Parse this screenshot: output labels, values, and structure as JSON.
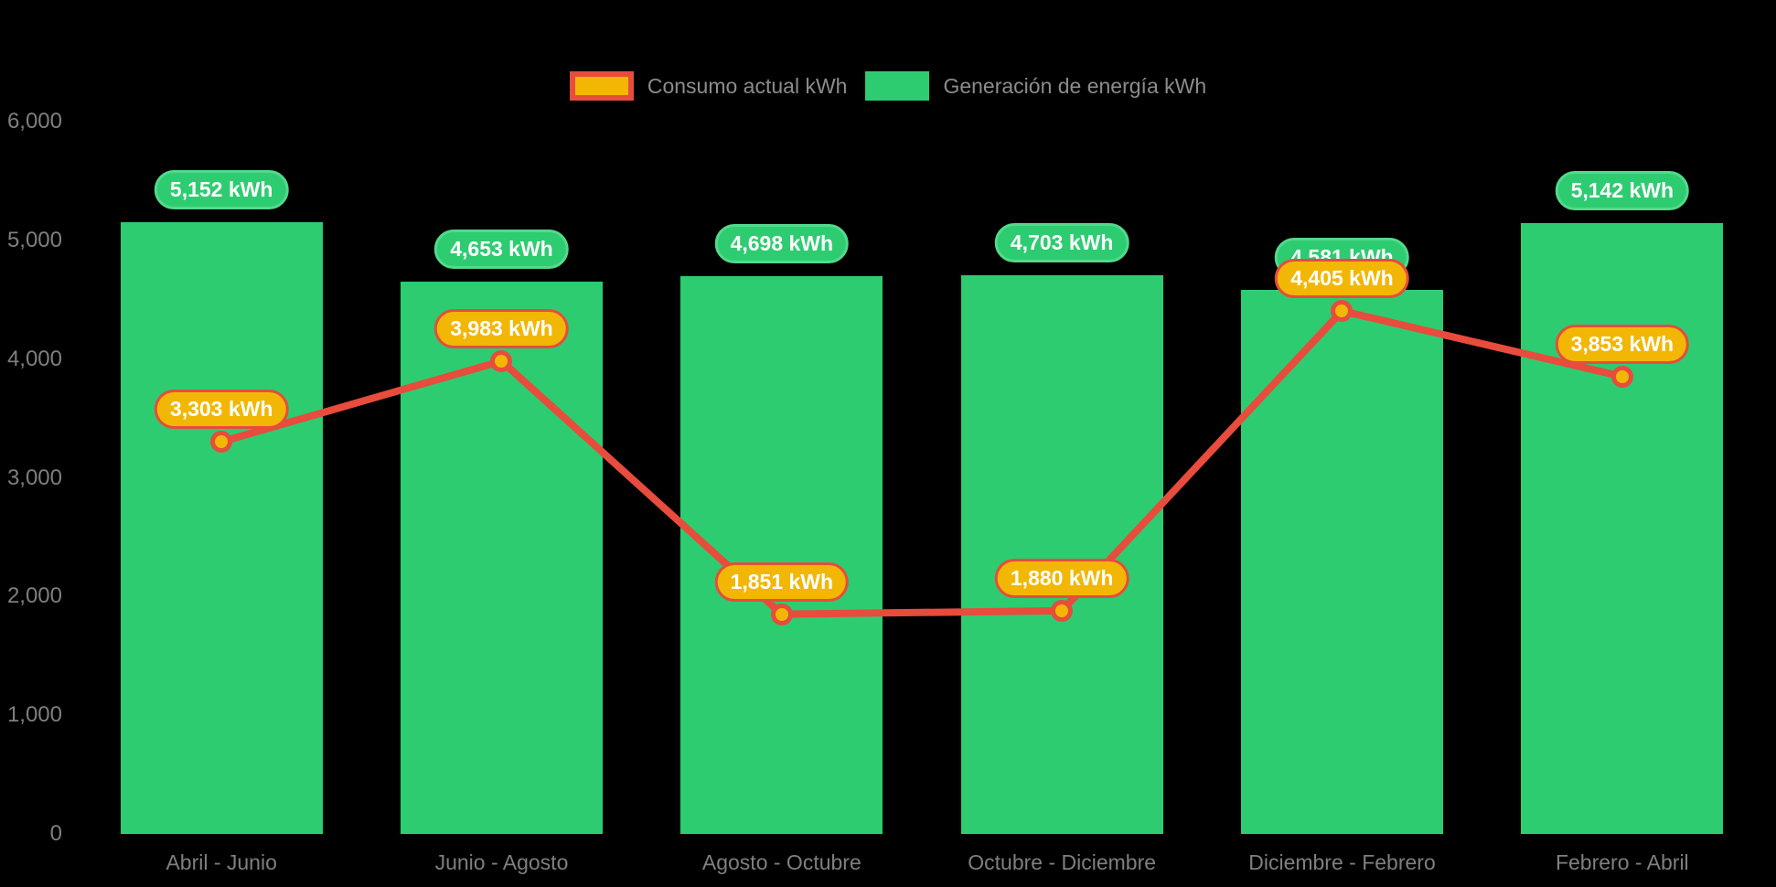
{
  "colors": {
    "background": "#000000",
    "bar": "#2ecc71",
    "bar_badge_fill": "#2ecc71",
    "bar_badge_border": "#53d98b",
    "line": "#e74c3c",
    "line_badge_fill": "#f2b705",
    "line_badge_border": "#e74c3c",
    "marker_fill": "#f2b705",
    "marker_border": "#e74c3c",
    "axis_text": "#7f7f7f",
    "legend_text": "#8c8c8c",
    "badge_text": "#ffffff"
  },
  "legend": {
    "items": [
      {
        "label": "Consumo actual kWh",
        "type": "line"
      },
      {
        "label": "Generación de energía kWh",
        "type": "bar"
      }
    ]
  },
  "chart_data": {
    "type": "bar+line",
    "title": "",
    "xlabel": "",
    "ylabel": "",
    "grid": false,
    "legend_position": "top-center",
    "categories": [
      "Abril - Junio",
      "Junio - Agosto",
      "Agosto - Octubre",
      "Octubre - Diciembre",
      "Diciembre - Febrero",
      "Febrero - Abril"
    ],
    "series": [
      {
        "name": "Generación de energía kWh",
        "type": "bar",
        "color": "#2ecc71",
        "values": [
          5152,
          4653,
          4698,
          4703,
          4581,
          5142
        ],
        "labels": [
          "5,152 kWh",
          "4,653 kWh",
          "4,698 kWh",
          "4,703 kWh",
          "4,581 kWh",
          "5,142 kWh"
        ]
      },
      {
        "name": "Consumo actual kWh",
        "type": "line",
        "color": "#e74c3c",
        "values": [
          3303,
          3983,
          1851,
          1880,
          4405,
          3853
        ],
        "labels": [
          "3,303 kWh",
          "3,983 kWh",
          "1,851 kWh",
          "1,880 kWh",
          "4,405 kWh",
          "3,853 kWh"
        ]
      }
    ],
    "y_axis": {
      "min": 0,
      "max": 6000,
      "step": 1000,
      "tick_labels": [
        "0",
        "1,000",
        "2,000",
        "3,000",
        "4,000",
        "5,000",
        "6,000"
      ]
    }
  }
}
